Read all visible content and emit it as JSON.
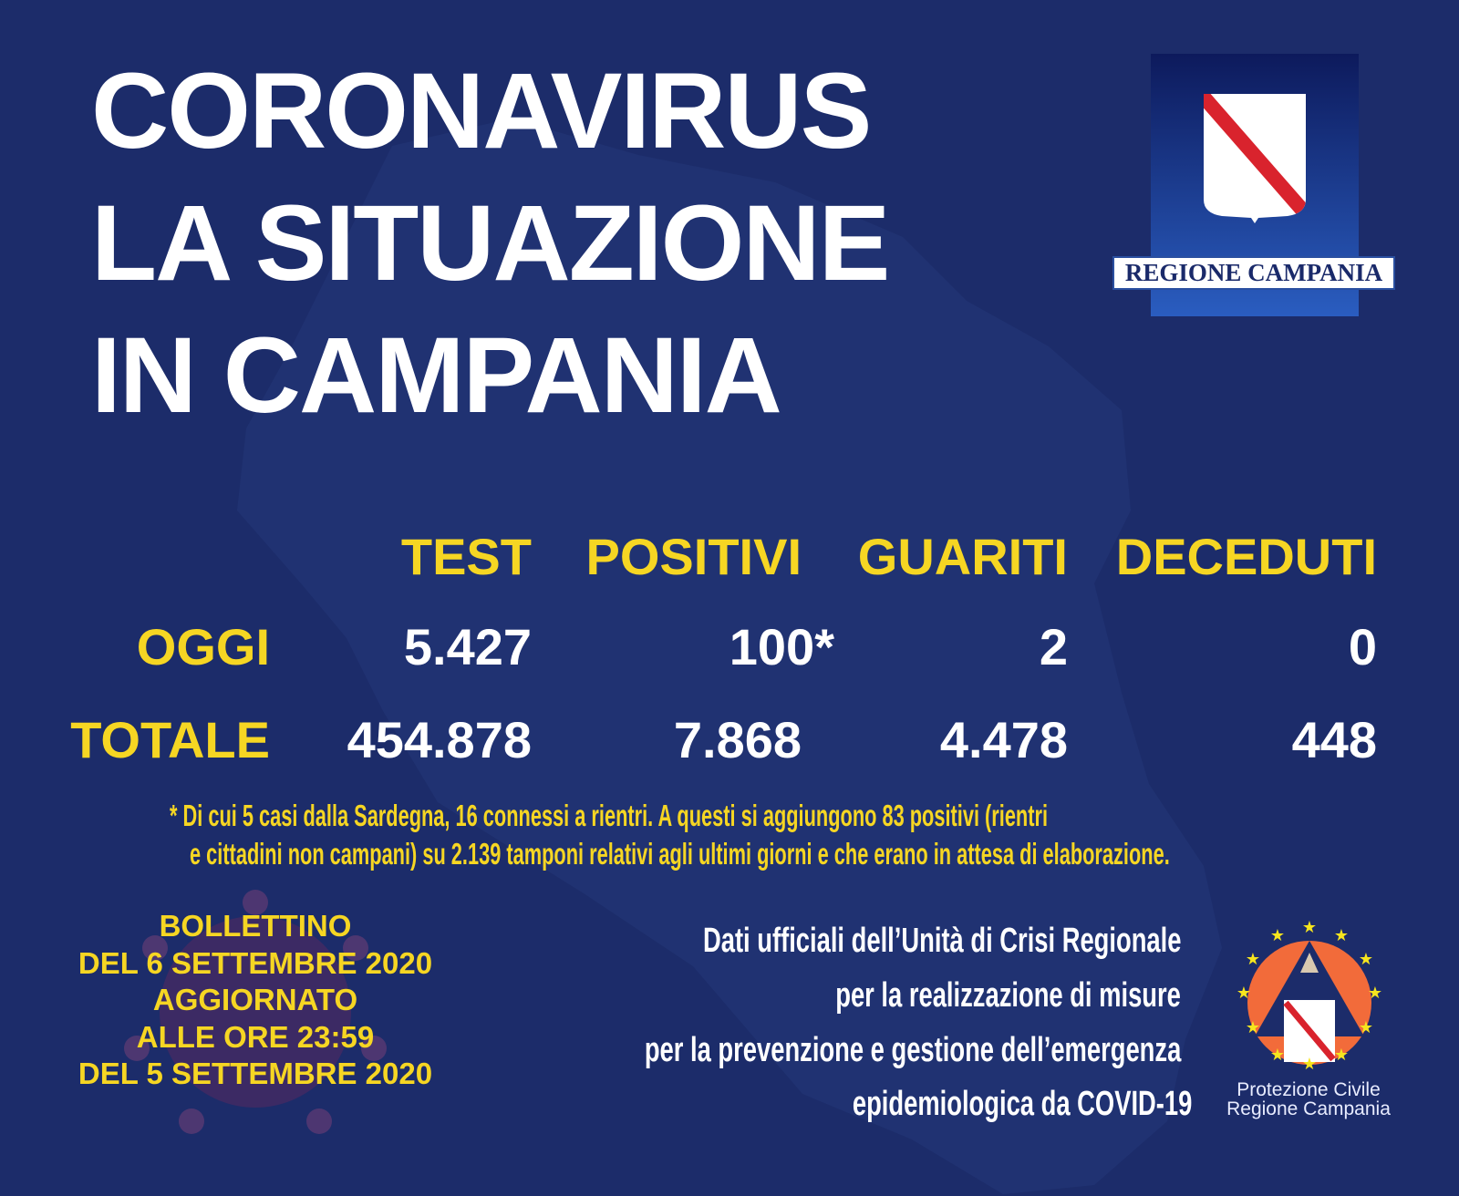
{
  "title": {
    "line1": "CORONAVIRUS",
    "line2": "LA SITUAZIONE",
    "line3": "IN CAMPANIA"
  },
  "logo": {
    "label": "REGIONE CAMPANIA"
  },
  "table": {
    "headers": [
      "TEST",
      "POSITIVI",
      "GUARITI",
      "DECEDUTI"
    ],
    "rows": [
      {
        "label": "OGGI",
        "values": [
          "5.427",
          "100*",
          "2",
          "0"
        ]
      },
      {
        "label": "TOTALE",
        "values": [
          "454.878",
          "7.868",
          "4.478",
          "448"
        ]
      }
    ]
  },
  "footnote": {
    "line1": "* Di cui 5 casi dalla Sardegna, 16 connessi a rientri. A questi si aggiungono 83 positivi (rientri",
    "line2": "e cittadini non campani) su 2.139 tamponi relativi agli ultimi giorni e che erano in attesa di elaborazione."
  },
  "bulletin": [
    "BOLLETTINO",
    "DEL 6 SETTEMBRE 2020",
    "AGGIORNATO",
    "ALLE ORE 23:59",
    "DEL 5 SETTEMBRE 2020"
  ],
  "source": [
    "Dati ufficiali dell’Unità di Crisi Regionale",
    "per la realizzazione di misure",
    "per la prevenzione e gestione dell’emergenza",
    "epidemiologica da COVID-19"
  ],
  "pc_logo": {
    "line1": "Protezione Civile",
    "line2": "Regione Campania"
  },
  "colors": {
    "background": "#1c2c6a",
    "accent": "#f6d623",
    "text": "#ffffff",
    "pc_orange": "#f26b3a"
  }
}
